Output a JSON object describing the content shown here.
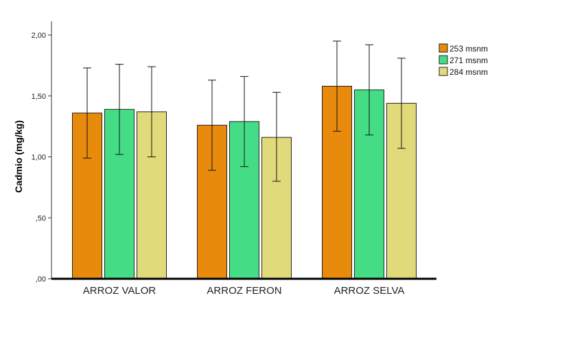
{
  "chart_data": {
    "type": "bar",
    "ylabel": "Cadmio (mg/kg)",
    "xlabel": "",
    "ylim": [
      0,
      2.0
    ],
    "yticks": [
      {
        "value": 0,
        "label": ",00"
      },
      {
        "value": 0.5,
        "label": ",50"
      },
      {
        "value": 1.0,
        "label": "1,00"
      },
      {
        "value": 1.5,
        "label": "1,50"
      },
      {
        "value": 2.0,
        "label": "2,00"
      }
    ],
    "categories": [
      "ARROZ VALOR",
      "ARROZ FERON",
      "ARROZ SELVA"
    ],
    "series": [
      {
        "name": "253 msnm",
        "color": "#E88A0C",
        "values": [
          1.36,
          1.26,
          1.58
        ],
        "err_low": [
          0.99,
          0.89,
          1.21
        ],
        "err_high": [
          1.73,
          1.63,
          1.95
        ]
      },
      {
        "name": "271 msnm",
        "color": "#44DD86",
        "values": [
          1.39,
          1.29,
          1.55
        ],
        "err_low": [
          1.02,
          0.92,
          1.18
        ],
        "err_high": [
          1.76,
          1.66,
          1.92
        ]
      },
      {
        "name": "284 msnm",
        "color": "#E0DA7A",
        "values": [
          1.37,
          1.16,
          1.44
        ],
        "err_low": [
          1.0,
          0.8,
          1.07
        ],
        "err_high": [
          1.74,
          1.53,
          1.81
        ]
      }
    ],
    "legend_position": "top-right",
    "grid": false
  }
}
